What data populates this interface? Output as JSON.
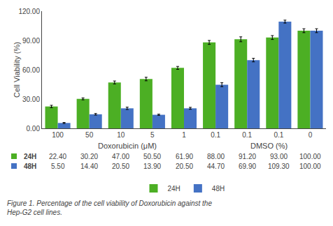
{
  "chart_data": {
    "type": "bar",
    "categories": [
      "100",
      "50",
      "10",
      "5",
      "1",
      "0.1",
      "0.1",
      "0.1",
      "0"
    ],
    "xlabel": [
      "Doxorubicin (μM)",
      "DMSO (%)"
    ],
    "ylabel": "Cell Viability (%)",
    "series": [
      {
        "name": "24H",
        "color": "#4caf24",
        "values": [
          22.4,
          30.2,
          47.0,
          50.5,
          61.9,
          88.0,
          91.2,
          93.0,
          100.0
        ],
        "errors": [
          1.2,
          1.0,
          1.5,
          1.8,
          1.5,
          2.0,
          2.5,
          2.0,
          2.0
        ],
        "value_labels": [
          "22.40",
          "30.20",
          "47.00",
          "50.50",
          "61.90",
          "88.00",
          "91.20",
          "93.00",
          "100.00"
        ]
      },
      {
        "name": "48H",
        "color": "#4472c4",
        "values": [
          5.5,
          14.4,
          20.5,
          13.9,
          20.5,
          44.7,
          69.9,
          109.3,
          100.0
        ],
        "errors": [
          0.5,
          0.8,
          1.2,
          0.6,
          1.0,
          2.0,
          1.8,
          1.5,
          2.0
        ],
        "value_labels": [
          "5.50",
          "14.40",
          "20.50",
          "13.90",
          "20.50",
          "44.70",
          "69.90",
          "109.30",
          "100.00"
        ]
      }
    ],
    "ylim": [
      0,
      120
    ],
    "yticks": [
      {
        "value": 0,
        "label": "0.00"
      },
      {
        "value": 30,
        "label": "30.00"
      },
      {
        "value": 60,
        "label": "60.00"
      },
      {
        "value": 90,
        "label": "90.00"
      },
      {
        "value": 120,
        "label": "120.00"
      }
    ],
    "grid": false,
    "legend": "bottom",
    "annotations": [
      "Figure 1. Percentage of the cell viability of Doxorubicin against the\nHep-G2 cell lines."
    ]
  }
}
